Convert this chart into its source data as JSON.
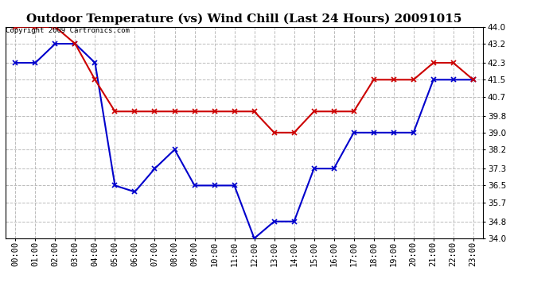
{
  "title": "Outdoor Temperature (vs) Wind Chill (Last 24 Hours) 20091015",
  "copyright_text": "Copyright 2009 Cartronics.com",
  "x_labels": [
    "00:00",
    "01:00",
    "02:00",
    "03:00",
    "04:00",
    "05:00",
    "06:00",
    "07:00",
    "08:00",
    "09:00",
    "10:00",
    "11:00",
    "12:00",
    "13:00",
    "14:00",
    "15:00",
    "16:00",
    "17:00",
    "18:00",
    "19:00",
    "20:00",
    "21:00",
    "22:00",
    "23:00"
  ],
  "temp_data": [
    42.3,
    42.3,
    43.2,
    43.2,
    42.3,
    36.5,
    36.2,
    37.3,
    38.2,
    36.5,
    36.5,
    36.5,
    34.0,
    34.8,
    34.8,
    37.3,
    37.3,
    39.0,
    39.0,
    39.0,
    39.0,
    41.5,
    41.5,
    41.5
  ],
  "wind_chill_data": [
    44.0,
    44.0,
    44.0,
    43.2,
    41.5,
    40.0,
    40.0,
    40.0,
    40.0,
    40.0,
    40.0,
    40.0,
    40.0,
    39.0,
    39.0,
    40.0,
    40.0,
    40.0,
    41.5,
    41.5,
    41.5,
    42.3,
    42.3,
    41.5
  ],
  "temp_color": "#0000cc",
  "wind_chill_color": "#cc0000",
  "ylim_min": 34.0,
  "ylim_max": 44.0,
  "yticks": [
    34.0,
    34.8,
    35.7,
    36.5,
    37.3,
    38.2,
    39.0,
    39.8,
    40.7,
    41.5,
    42.3,
    43.2,
    44.0
  ],
  "background_color": "#ffffff",
  "grid_color": "#bbbbbb",
  "title_fontsize": 11,
  "tick_fontsize": 7.5,
  "copyright_fontsize": 6.5,
  "marker": "x",
  "marker_size": 4,
  "linewidth": 1.5
}
